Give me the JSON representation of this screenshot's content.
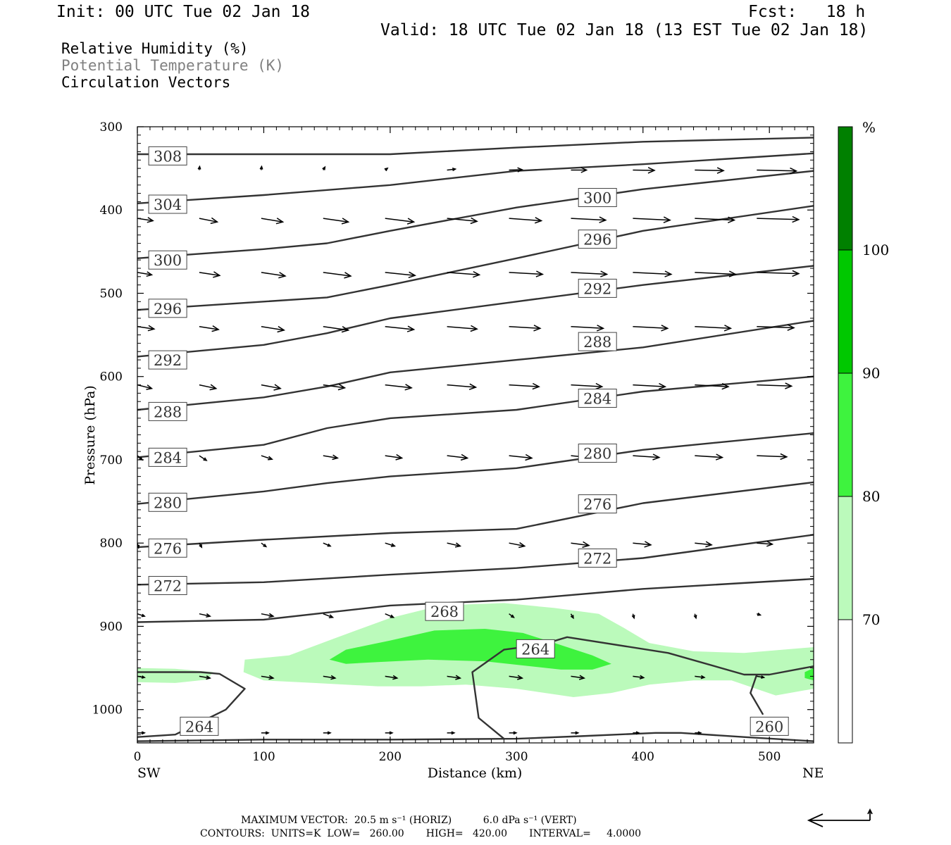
{
  "header": {
    "init": "Init: 00 UTC Tue 02 Jan 18",
    "fcst": "Fcst:   18 h",
    "valid": "Valid: 18 UTC Tue 02 Jan 18 (13 EST Tue 02 Jan 18)"
  },
  "legend": {
    "line1": "Relative Humidity (%)",
    "line2": "Potential Temperature (K)",
    "line3": "Circulation Vectors"
  },
  "footer": {
    "max_vector": "MAXIMUM VECTOR:  20.5 m s⁻¹ (HORIZ)          6.0 dPa s⁻¹ (VERT)",
    "contours": "CONTOURS:  UNITS=K  LOW=   260.00       HIGH=   420.00       INTERVAL=     4.0000"
  },
  "colors": {
    "rh_70_80": "#bbfabb",
    "rh_80_90": "#3ef33e",
    "rh_90_100": "#00c800",
    "rh_100_plus": "#008000",
    "theta_line": "#333333"
  },
  "chart_data": {
    "type": "cross-section",
    "xlabel": "Distance (km)",
    "ylabel": "Pressure (hPa)",
    "xlim": [
      0,
      535
    ],
    "ylim": [
      1040,
      300
    ],
    "x_ticks": [
      0,
      100,
      200,
      300,
      400,
      500
    ],
    "y_ticks": [
      300,
      400,
      500,
      600,
      700,
      800,
      900,
      1000
    ],
    "x_end_labels": {
      "left": "SW",
      "right": "NE"
    },
    "colorbar": {
      "unit": "%",
      "levels": [
        70,
        80,
        90,
        100
      ],
      "label_70": "70",
      "label_80": "80",
      "label_90": "90",
      "label_100": "100"
    },
    "rh_regions": [
      {
        "level": "70-80",
        "polygon": [
          [
            84,
            955
          ],
          [
            85,
            940
          ],
          [
            120,
            935
          ],
          [
            155,
            915
          ],
          [
            200,
            890
          ],
          [
            240,
            875
          ],
          [
            290,
            872
          ],
          [
            330,
            878
          ],
          [
            365,
            885
          ],
          [
            385,
            902
          ],
          [
            405,
            920
          ],
          [
            440,
            930
          ],
          [
            480,
            932
          ],
          [
            535,
            925
          ],
          [
            535,
            975
          ],
          [
            505,
            983
          ],
          [
            470,
            965
          ],
          [
            440,
            965
          ],
          [
            405,
            970
          ],
          [
            375,
            980
          ],
          [
            345,
            985
          ],
          [
            300,
            975
          ],
          [
            260,
            970
          ],
          [
            225,
            972
          ],
          [
            190,
            972
          ],
          [
            140,
            968
          ],
          [
            100,
            965
          ]
        ]
      },
      {
        "level": "70-80",
        "polygon": [
          [
            0,
            950
          ],
          [
            30,
            951
          ],
          [
            60,
            955
          ],
          [
            55,
            964
          ],
          [
            30,
            968
          ],
          [
            0,
            967
          ]
        ]
      },
      {
        "level": "80-90",
        "polygon": [
          [
            152,
            940
          ],
          [
            165,
            928
          ],
          [
            200,
            917
          ],
          [
            235,
            905
          ],
          [
            275,
            903
          ],
          [
            305,
            908
          ],
          [
            330,
            920
          ],
          [
            360,
            935
          ],
          [
            375,
            945
          ],
          [
            360,
            952
          ],
          [
            335,
            952
          ],
          [
            305,
            947
          ],
          [
            275,
            942
          ],
          [
            230,
            940
          ],
          [
            190,
            943
          ],
          [
            165,
            945
          ]
        ]
      },
      {
        "level": "80-90",
        "polygon": [
          [
            528,
            955
          ],
          [
            535,
            950
          ],
          [
            535,
            965
          ],
          [
            528,
            962
          ]
        ]
      }
    ],
    "theta_lines": [
      {
        "label": "308",
        "points": [
          [
            0,
            333
          ],
          [
            100,
            333
          ],
          [
            200,
            333
          ],
          [
            300,
            325
          ],
          [
            400,
            318
          ],
          [
            535,
            313
          ]
        ]
      },
      {
        "label": "304",
        "points": [
          [
            0,
            392
          ],
          [
            100,
            382
          ],
          [
            200,
            370
          ],
          [
            300,
            353
          ],
          [
            400,
            345
          ],
          [
            535,
            332
          ]
        ]
      },
      {
        "label": "300",
        "points": [
          [
            0,
            458
          ],
          [
            100,
            447
          ],
          [
            150,
            440
          ],
          [
            200,
            425
          ],
          [
            300,
            397
          ],
          [
            400,
            375
          ],
          [
            535,
            353
          ]
        ]
      },
      {
        "label": "296",
        "points": [
          [
            0,
            520
          ],
          [
            100,
            510
          ],
          [
            150,
            505
          ],
          [
            200,
            490
          ],
          [
            300,
            458
          ],
          [
            400,
            425
          ],
          [
            535,
            395
          ]
        ]
      },
      {
        "label": "292",
        "points": [
          [
            0,
            576
          ],
          [
            100,
            562
          ],
          [
            150,
            548
          ],
          [
            200,
            530
          ],
          [
            300,
            510
          ],
          [
            400,
            490
          ],
          [
            535,
            467
          ]
        ]
      },
      {
        "label": "288",
        "points": [
          [
            0,
            640
          ],
          [
            100,
            625
          ],
          [
            150,
            612
          ],
          [
            200,
            595
          ],
          [
            300,
            580
          ],
          [
            400,
            565
          ],
          [
            535,
            533
          ]
        ]
      },
      {
        "label": "284",
        "points": [
          [
            0,
            697
          ],
          [
            100,
            682
          ],
          [
            150,
            662
          ],
          [
            200,
            650
          ],
          [
            300,
            640
          ],
          [
            400,
            618
          ],
          [
            535,
            600
          ]
        ]
      },
      {
        "label": "280",
        "points": [
          [
            0,
            753
          ],
          [
            100,
            738
          ],
          [
            150,
            728
          ],
          [
            200,
            720
          ],
          [
            300,
            710
          ],
          [
            400,
            688
          ],
          [
            535,
            668
          ]
        ]
      },
      {
        "label": "276",
        "points": [
          [
            0,
            805
          ],
          [
            100,
            796
          ],
          [
            200,
            788
          ],
          [
            300,
            783
          ],
          [
            400,
            752
          ],
          [
            535,
            727
          ]
        ]
      },
      {
        "label": "272",
        "points": [
          [
            0,
            850
          ],
          [
            100,
            847
          ],
          [
            200,
            838
          ],
          [
            300,
            830
          ],
          [
            400,
            818
          ],
          [
            535,
            790
          ]
        ]
      },
      {
        "label": "268",
        "points": [
          [
            0,
            895
          ],
          [
            100,
            892
          ],
          [
            200,
            875
          ],
          [
            300,
            868
          ],
          [
            400,
            855
          ],
          [
            535,
            843
          ]
        ]
      },
      {
        "label": "264",
        "points": [
          [
            0,
            955
          ],
          [
            50,
            955
          ],
          [
            65,
            957
          ],
          [
            85,
            975
          ],
          [
            70,
            1000
          ],
          [
            30,
            1030
          ],
          [
            0,
            1033
          ]
        ]
      },
      {
        "label": "264",
        "points": [
          [
            535,
            948
          ],
          [
            500,
            958
          ],
          [
            480,
            958
          ],
          [
            420,
            932
          ],
          [
            340,
            913
          ],
          [
            320,
            922
          ],
          [
            290,
            928
          ],
          [
            265,
            955
          ],
          [
            270,
            1010
          ],
          [
            290,
            1035
          ]
        ]
      },
      {
        "label": "260",
        "points": [
          [
            0,
            1038
          ],
          [
            100,
            1036
          ],
          [
            200,
            1036
          ],
          [
            300,
            1035
          ],
          [
            350,
            1032
          ],
          [
            410,
            1028
          ],
          [
            430,
            1028
          ],
          [
            480,
            1033
          ],
          [
            535,
            1038
          ]
        ]
      },
      {
        "label": "260",
        "points": [
          [
            490,
            958
          ],
          [
            485,
            980
          ],
          [
            495,
            1006
          ]
        ]
      }
    ],
    "theta_labels": [
      {
        "text": "308",
        "x": 24,
        "p": 335
      },
      {
        "text": "304",
        "x": 24,
        "p": 393
      },
      {
        "text": "300",
        "x": 24,
        "p": 460
      },
      {
        "text": "296",
        "x": 24,
        "p": 518
      },
      {
        "text": "292",
        "x": 24,
        "p": 580
      },
      {
        "text": "288",
        "x": 24,
        "p": 642
      },
      {
        "text": "284",
        "x": 24,
        "p": 697
      },
      {
        "text": "280",
        "x": 24,
        "p": 751
      },
      {
        "text": "276",
        "x": 24,
        "p": 806
      },
      {
        "text": "272",
        "x": 24,
        "p": 851
      },
      {
        "text": "300",
        "x": 364,
        "p": 385
      },
      {
        "text": "296",
        "x": 364,
        "p": 435
      },
      {
        "text": "292",
        "x": 364,
        "p": 494
      },
      {
        "text": "288",
        "x": 364,
        "p": 558
      },
      {
        "text": "284",
        "x": 364,
        "p": 626
      },
      {
        "text": "280",
        "x": 364,
        "p": 692
      },
      {
        "text": "276",
        "x": 364,
        "p": 753
      },
      {
        "text": "272",
        "x": 364,
        "p": 818
      },
      {
        "text": "268",
        "x": 243,
        "p": 882
      },
      {
        "text": "264",
        "x": 315,
        "p": 927
      },
      {
        "text": "264",
        "x": 49,
        "p": 1020
      },
      {
        "text": "260",
        "x": 500,
        "p": 1020
      }
    ],
    "vectors": [
      {
        "p": 352,
        "x": [
          49,
          98,
          147,
          196,
          245,
          294,
          343,
          392,
          441,
          490
        ],
        "u": [
          0.3,
          0.3,
          1.5,
          2,
          7,
          11,
          13,
          18,
          24,
          33
        ],
        "v": [
          3,
          3,
          2.5,
          1.5,
          0.8,
          0.3,
          0,
          -0.3,
          -0.5,
          -0.8
        ]
      },
      {
        "p": 410,
        "x": [
          0,
          49,
          98,
          147,
          196,
          245,
          294,
          343,
          392,
          441,
          490,
          535
        ],
        "u": [
          13,
          15,
          18,
          21,
          24,
          25,
          27,
          29,
          31,
          33,
          35,
          37
        ],
        "v": [
          -2,
          -3,
          -3,
          -3,
          -3,
          -2.5,
          -2,
          -1.5,
          -1.5,
          -1.5,
          -1,
          -0.5
        ]
      },
      {
        "p": 475,
        "x": [
          0,
          49,
          98,
          147,
          196,
          245,
          294,
          343,
          392,
          441,
          490,
          535
        ],
        "u": [
          12,
          17,
          20,
          23,
          25,
          27,
          28,
          30,
          32,
          34,
          35,
          36
        ],
        "v": [
          -2,
          -2.5,
          -3,
          -3,
          -2.5,
          -2,
          -1.5,
          -1.5,
          -1.5,
          -1.5,
          -1,
          -0.5
        ]
      },
      {
        "p": 540,
        "x": [
          0,
          49,
          98,
          147,
          196,
          245,
          294,
          343,
          392,
          441,
          490,
          535
        ],
        "u": [
          14,
          16,
          19,
          21,
          24,
          25,
          26,
          27,
          29,
          30,
          31,
          32
        ],
        "v": [
          -2,
          -2.5,
          -3,
          -3,
          -2.5,
          -2,
          -1.5,
          -1.5,
          -1.5,
          -1.5,
          -1,
          -0.5
        ]
      },
      {
        "p": 610,
        "x": [
          0,
          49,
          98,
          147,
          196,
          245,
          294,
          343,
          392,
          441,
          490
        ],
        "u": [
          12,
          14,
          16,
          18,
          22,
          24,
          25,
          26,
          27,
          28,
          29
        ],
        "v": [
          -3,
          -3,
          -3,
          -2.5,
          -2.5,
          -2,
          -1.5,
          -1.5,
          -1.5,
          -1.5,
          -1
        ]
      },
      {
        "p": 695,
        "x": [
          0,
          49,
          98,
          147,
          196,
          245,
          294,
          343,
          392,
          441,
          490
        ],
        "u": [
          4,
          6,
          9,
          12,
          14,
          17,
          19,
          20,
          22,
          23,
          25
        ],
        "v": [
          -3.5,
          -4,
          -3,
          -2,
          -2,
          -2,
          -2,
          -2,
          -1.5,
          -1.5,
          -1
        ]
      },
      {
        "p": 800,
        "x": [
          0,
          49,
          98,
          147,
          196,
          245,
          294,
          343,
          392,
          441,
          490
        ],
        "u": [
          1,
          2,
          4,
          6,
          8,
          11,
          13,
          15,
          15,
          14,
          13
        ],
        "v": [
          -4,
          -3.5,
          -3,
          -2.5,
          -2.5,
          -2.5,
          -2.5,
          -2,
          -1.5,
          -1.5,
          -1
        ]
      },
      {
        "p": 885,
        "x": [
          0,
          49,
          98,
          147,
          196,
          245,
          294,
          343,
          392,
          441,
          490
        ],
        "u": [
          6,
          9,
          10,
          8,
          7,
          5,
          4,
          2,
          1,
          1,
          3
        ],
        "v": [
          -2,
          -2,
          -2,
          -3,
          -3,
          -3,
          -3,
          -3.5,
          -3.5,
          -3.5,
          -1
        ]
      },
      {
        "p": 960,
        "x": [
          0,
          49,
          98,
          147,
          196,
          245,
          294,
          343,
          392,
          441,
          490,
          535
        ],
        "u": [
          6,
          9,
          10,
          10,
          10,
          11,
          11,
          11,
          9,
          8,
          6,
          4
        ],
        "v": [
          -1,
          -1.5,
          -1.5,
          -1.5,
          -1.5,
          -1.5,
          -1.5,
          -1.5,
          -1.2,
          -1,
          -1,
          -0.5
        ]
      },
      {
        "p": 1028,
        "x": [
          0,
          49,
          98,
          147,
          196,
          245,
          294,
          343,
          392,
          441,
          490,
          535
        ],
        "u": [
          6,
          6,
          6,
          6,
          6,
          6,
          6,
          6,
          5,
          5,
          4,
          3
        ],
        "v": [
          0,
          0,
          0,
          0,
          0,
          0,
          0,
          0,
          0,
          0,
          0,
          0
        ]
      }
    ]
  }
}
